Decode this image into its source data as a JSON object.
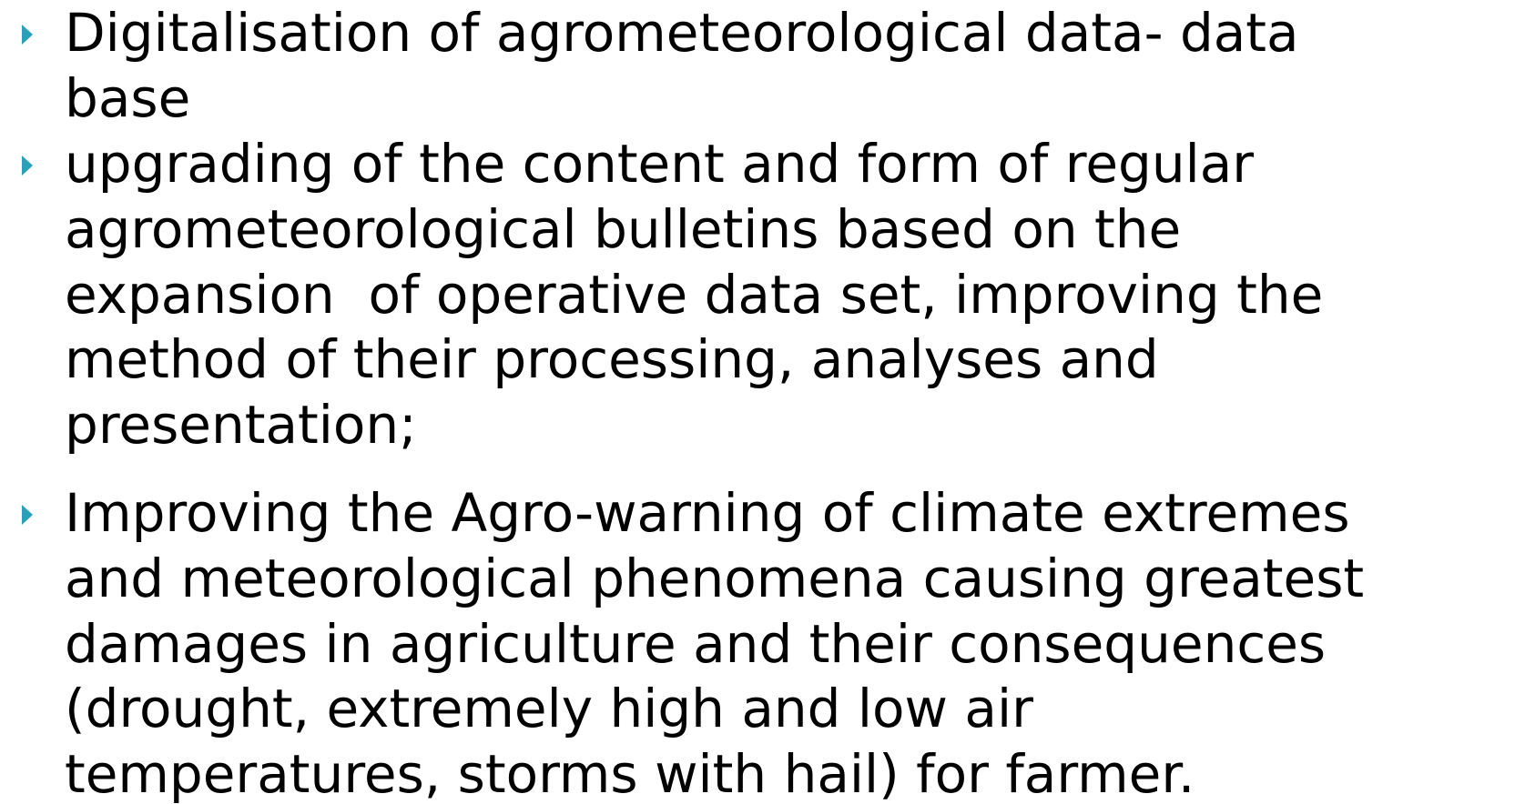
{
  "bullets": [
    {
      "lines": [
        "Digitalisation of agrometeorological data- data",
        "base"
      ]
    },
    {
      "lines": [
        "upgrading of the content and form of regular",
        "agrometeorological bulletins based on the",
        "expansion  of operative data set, improving the",
        "method of their processing, analyses and",
        "presentation;"
      ]
    },
    {
      "lines": [
        "Improving the Agro-warning of climate extremes",
        "and meteorological phenomena causing greatest",
        "damages in agriculture and their consequences",
        "(drought, extremely high and low air",
        "temperatures, storms with hail) for farmer."
      ]
    }
  ]
}
